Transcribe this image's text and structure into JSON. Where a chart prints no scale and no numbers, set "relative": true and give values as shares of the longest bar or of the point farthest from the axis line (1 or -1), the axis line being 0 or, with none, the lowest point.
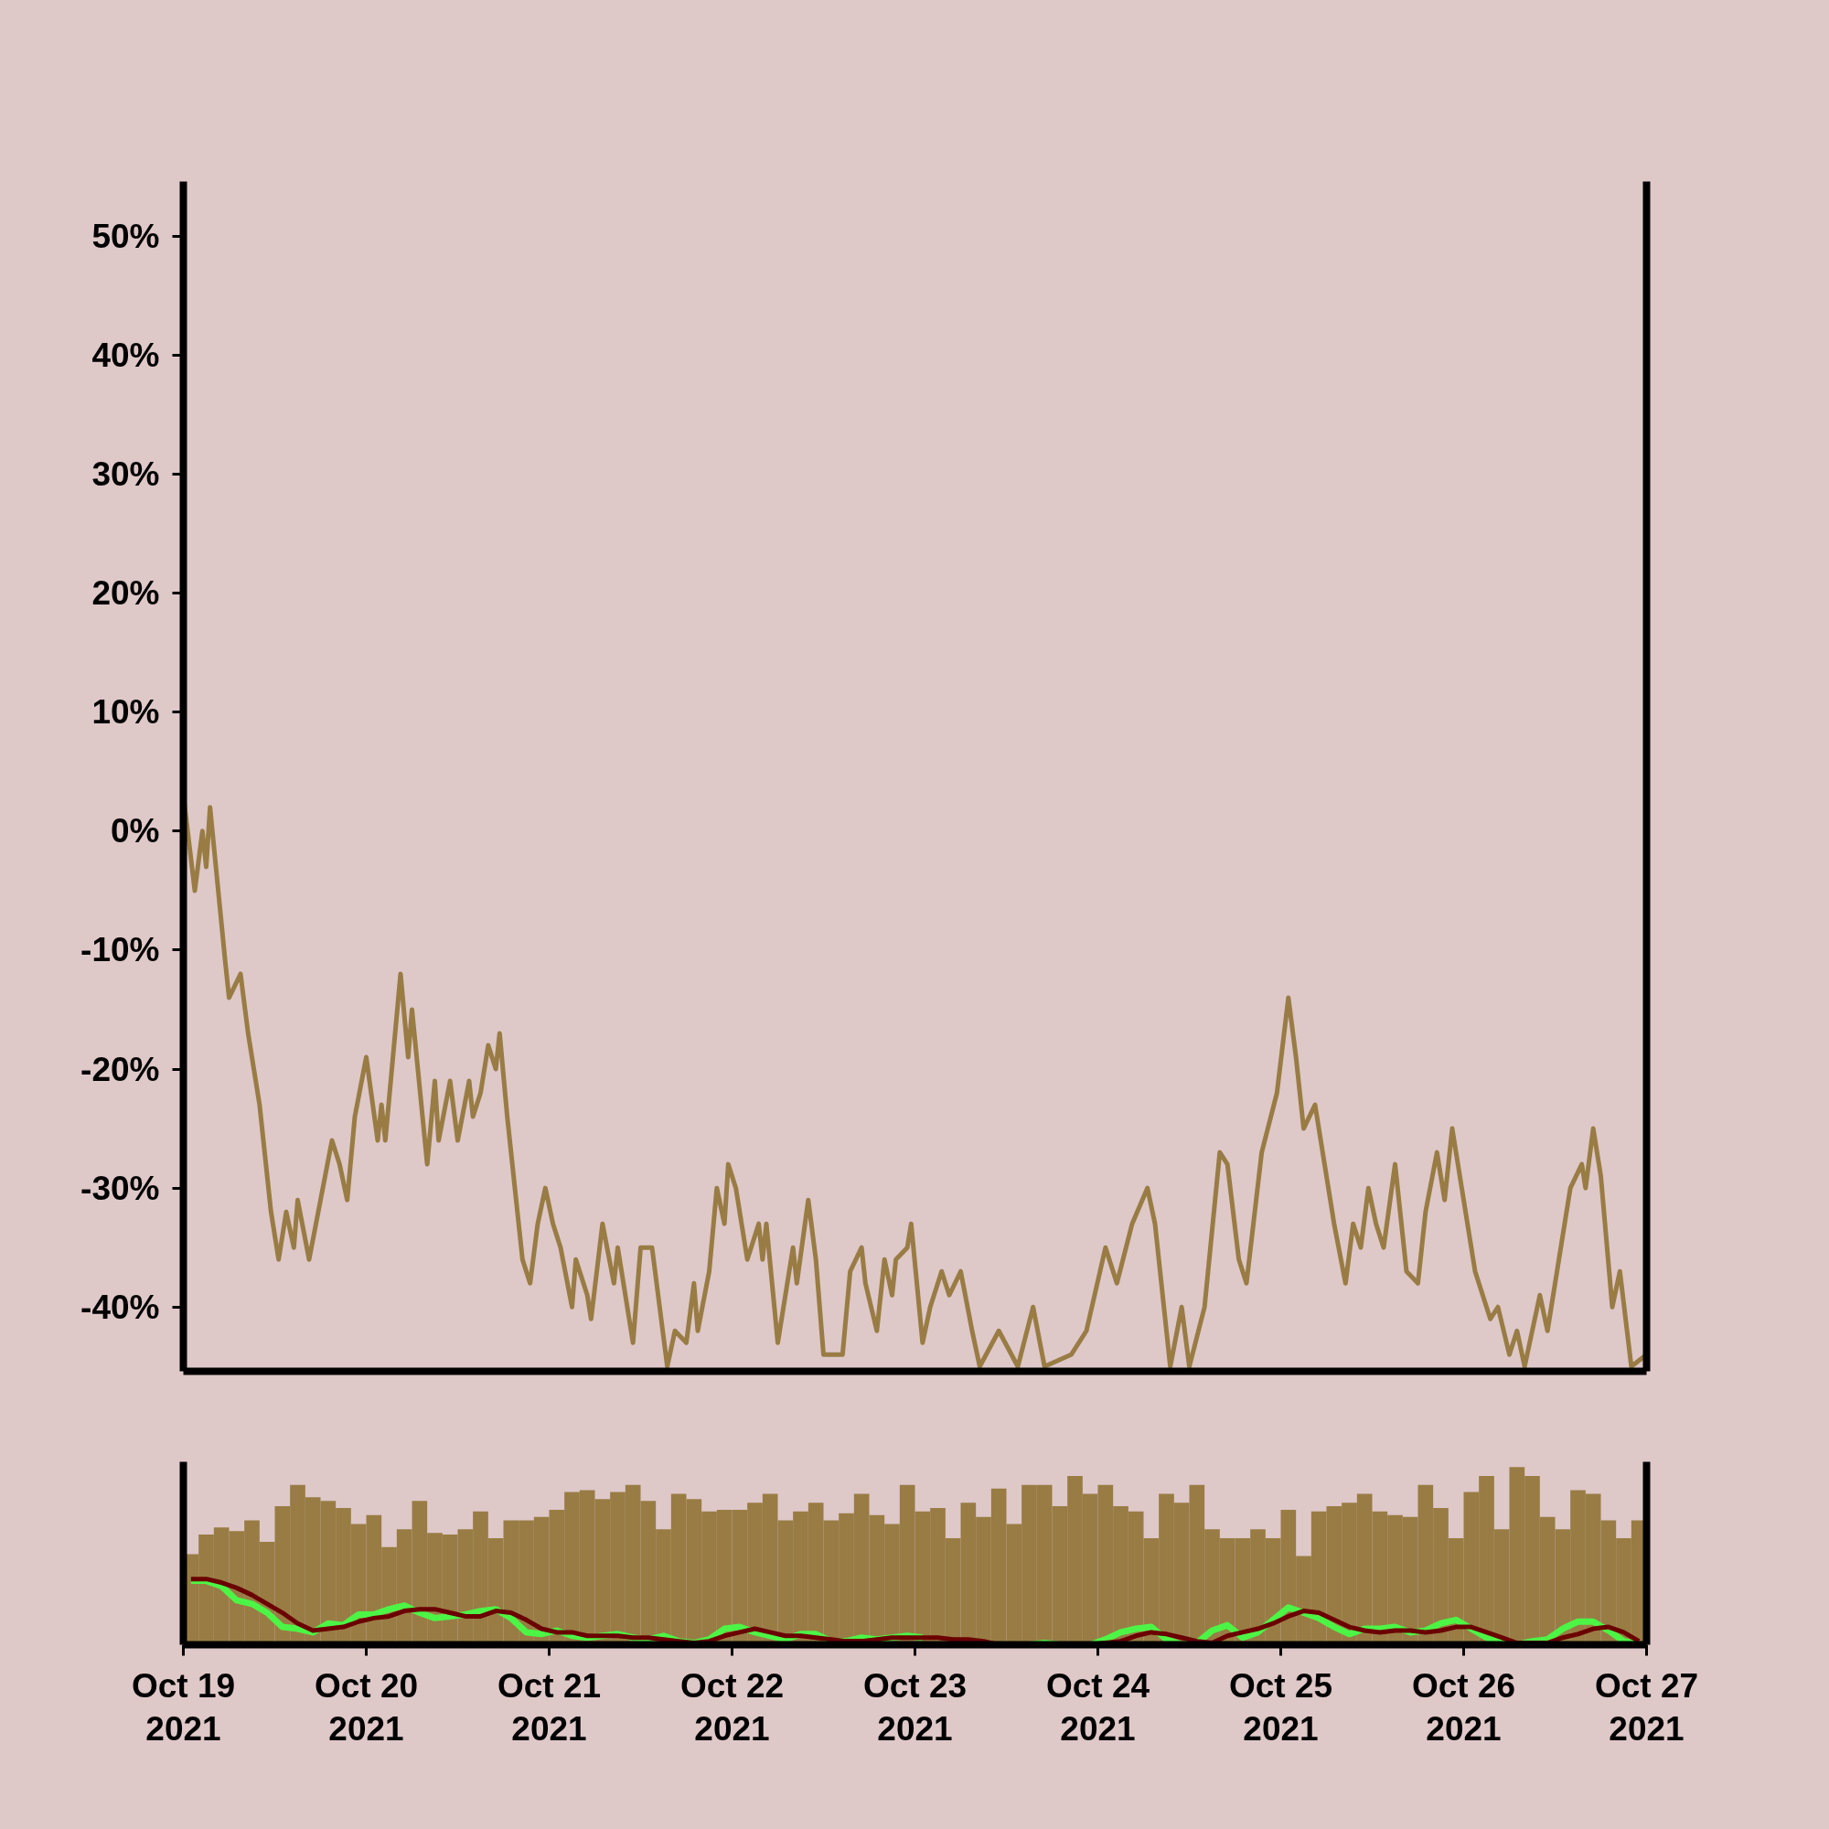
{
  "chart_data": [
    {
      "type": "line",
      "tick_labels": "y",
      "xlim": [
        "2021-10-19",
        "2021-10-27"
      ],
      "ylim": [
        -45.4,
        54.6
      ],
      "yticks": [
        {
          "value": -40,
          "label": "-40%"
        },
        {
          "value": -30,
          "label": "-30%"
        },
        {
          "value": -20,
          "label": "-20%"
        },
        {
          "value": -10,
          "label": "-10%"
        },
        {
          "value": 0,
          "label": "0%"
        },
        {
          "value": 10,
          "label": "10%"
        },
        {
          "value": 20,
          "label": "20%"
        },
        {
          "value": 30,
          "label": "30%"
        },
        {
          "value": 40,
          "label": "40%"
        },
        {
          "value": 50,
          "label": "50%"
        }
      ],
      "x": [
        "2021-10-19T00:00",
        "2021-10-19T01:30",
        "2021-10-19T02:30",
        "2021-10-19T03:00",
        "2021-10-19T03:30",
        "2021-10-19T05:30",
        "2021-10-19T06:00",
        "2021-10-19T07:30",
        "2021-10-19T08:30",
        "2021-10-19T10:00",
        "2021-10-19T11:30",
        "2021-10-19T12:30",
        "2021-10-19T13:30",
        "2021-10-19T14:30",
        "2021-10-19T15:00",
        "2021-10-19T16:30",
        "2021-10-19T18:00",
        "2021-10-19T19:30",
        "2021-10-19T20:30",
        "2021-10-19T21:30",
        "2021-10-19T22:30",
        "2021-10-20T00:00",
        "2021-10-20T01:30",
        "2021-10-20T02:00",
        "2021-10-20T02:30",
        "2021-10-20T04:30",
        "2021-10-20T05:30",
        "2021-10-20T06:00",
        "2021-10-20T08:00",
        "2021-10-20T09:00",
        "2021-10-20T09:30",
        "2021-10-20T11:00",
        "2021-10-20T12:00",
        "2021-10-20T13:30",
        "2021-10-20T14:00",
        "2021-10-20T15:00",
        "2021-10-20T16:00",
        "2021-10-20T17:00",
        "2021-10-20T17:30",
        "2021-10-20T18:30",
        "2021-10-20T20:30",
        "2021-10-20T21:30",
        "2021-10-20T22:30",
        "2021-10-20T23:30",
        "2021-10-21T00:30",
        "2021-10-21T01:30",
        "2021-10-21T03:00",
        "2021-10-21T03:30",
        "2021-10-21T05:00",
        "2021-10-21T05:30",
        "2021-10-21T07:00",
        "2021-10-21T08:30",
        "2021-10-21T09:00",
        "2021-10-21T11:00",
        "2021-10-21T12:00",
        "2021-10-21T13:30",
        "2021-10-21T14:30",
        "2021-10-21T15:30",
        "2021-10-21T16:30",
        "2021-10-21T18:00",
        "2021-10-21T19:00",
        "2021-10-21T19:30",
        "2021-10-21T21:00",
        "2021-10-21T22:00",
        "2021-10-21T23:00",
        "2021-10-21T23:30",
        "2021-10-22T00:30",
        "2021-10-22T02:00",
        "2021-10-22T03:30",
        "2021-10-22T04:00",
        "2021-10-22T04:30",
        "2021-10-22T06:00",
        "2021-10-22T08:00",
        "2021-10-22T08:30",
        "2021-10-22T10:00",
        "2021-10-22T11:00",
        "2021-10-22T12:00",
        "2021-10-22T13:30",
        "2021-10-22T14:30",
        "2021-10-22T15:30",
        "2021-10-22T17:00",
        "2021-10-22T17:30",
        "2021-10-22T19:00",
        "2021-10-22T20:00",
        "2021-10-22T21:00",
        "2021-10-22T21:30",
        "2021-10-22T23:00",
        "2021-10-22T23:30",
        "2021-10-23T01:00",
        "2021-10-23T02:00",
        "2021-10-23T03:30",
        "2021-10-23T04:30",
        "2021-10-23T06:00",
        "2021-10-23T07:30",
        "2021-10-23T08:30",
        "2021-10-23T11:00",
        "2021-10-23T13:30",
        "2021-10-23T15:30",
        "2021-10-23T17:00",
        "2021-10-23T20:30",
        "2021-10-23T22:30",
        "2021-10-24T01:00",
        "2021-10-24T02:30",
        "2021-10-24T04:30",
        "2021-10-24T06:30",
        "2021-10-24T07:30",
        "2021-10-24T09:30",
        "2021-10-24T11:00",
        "2021-10-24T12:00",
        "2021-10-24T14:00",
        "2021-10-24T16:00",
        "2021-10-24T17:00",
        "2021-10-24T18:30",
        "2021-10-24T19:30",
        "2021-10-24T21:30",
        "2021-10-24T23:30",
        "2021-10-25T01:00",
        "2021-10-25T02:00",
        "2021-10-25T03:00",
        "2021-10-25T04:30",
        "2021-10-25T05:30",
        "2021-10-25T07:00",
        "2021-10-25T08:30",
        "2021-10-25T09:30",
        "2021-10-25T10:30",
        "2021-10-25T11:30",
        "2021-10-25T12:30",
        "2021-10-25T13:30",
        "2021-10-25T15:00",
        "2021-10-25T16:30",
        "2021-10-25T18:00",
        "2021-10-25T19:00",
        "2021-10-25T20:30",
        "2021-10-25T21:30",
        "2021-10-25T22:30",
        "2021-10-26T00:30",
        "2021-10-26T01:30",
        "2021-10-26T02:30",
        "2021-10-26T03:30",
        "2021-10-26T04:30",
        "2021-10-26T06:00",
        "2021-10-26T07:00",
        "2021-10-26T08:00",
        "2021-10-26T10:00",
        "2021-10-26T11:00",
        "2021-10-26T11:30",
        "2021-10-26T14:00",
        "2021-10-26T15:30",
        "2021-10-26T16:00",
        "2021-10-26T17:00",
        "2021-10-26T18:00",
        "2021-10-26T19:30",
        "2021-10-26T20:30",
        "2021-10-26T22:00",
        "2021-10-27T00:00"
      ],
      "series": [
        {
          "color": "#987c44",
          "values": [
            3,
            -5,
            0,
            -3,
            2,
            -11,
            -14,
            -12,
            -17,
            -23,
            -32,
            -36,
            -32,
            -35,
            -31,
            -36,
            -31,
            -26,
            -28,
            -31,
            -24,
            -19,
            -26,
            -23,
            -26,
            -12,
            -19,
            -15,
            -28,
            -21,
            -26,
            -21,
            -26,
            -21,
            -24,
            -22,
            -18,
            -20,
            -17,
            -24,
            -36,
            -38,
            -33,
            -30,
            -33,
            -35,
            -40,
            -36,
            -39,
            -41,
            -33,
            -38,
            -35,
            -43,
            -35,
            -35,
            -40,
            -45,
            -42,
            -43,
            -38,
            -42,
            -37,
            -30,
            -33,
            -28,
            -30,
            -36,
            -33,
            -36,
            -33,
            -43,
            -35,
            -38,
            -31,
            -36,
            -44,
            -44,
            -44,
            -37,
            -35,
            -38,
            -42,
            -36,
            -39,
            -36,
            -35,
            -33,
            -43,
            -40,
            -37,
            -39,
            -37,
            -42,
            -45,
            -42,
            -45,
            -40,
            -45,
            -44,
            -42,
            -35,
            -38,
            -33,
            -30,
            -33,
            -45,
            -40,
            -45,
            -40,
            -27,
            -28,
            -36,
            -38,
            -27,
            -22,
            -14,
            -19,
            -25,
            -23,
            -27,
            -33,
            -38,
            -33,
            -35,
            -30,
            -33,
            -35,
            -28,
            -37,
            -38,
            -32,
            -27,
            -31,
            -25,
            -33,
            -37,
            -39,
            -41,
            -40,
            -44,
            -42,
            -45,
            -39,
            -42,
            -40,
            -30,
            -28,
            -30,
            -25,
            -29,
            -40,
            -37,
            -45,
            -44
          ]
        }
      ]
    },
    {
      "type": "bar",
      "relative": true,
      "tick_labels": "x",
      "xlim": [
        "2021-10-19",
        "2021-10-27"
      ],
      "xticks": [
        {
          "value": "2021-10-19",
          "label": "Oct 19\n2021"
        },
        {
          "value": "2021-10-20",
          "label": "Oct 20\n2021"
        },
        {
          "value": "2021-10-21",
          "label": "Oct 21\n2021"
        },
        {
          "value": "2021-10-22",
          "label": "Oct 22\n2021"
        },
        {
          "value": "2021-10-23",
          "label": "Oct 23\n2021"
        },
        {
          "value": "2021-10-24",
          "label": "Oct 24\n2021"
        },
        {
          "value": "2021-10-25",
          "label": "Oct 25\n2021"
        },
        {
          "value": "2021-10-26",
          "label": "Oct 26\n2021"
        },
        {
          "value": "2021-10-27",
          "label": "Oct 27\n2021"
        }
      ],
      "x": [
        "2021-10-19T01:00",
        "2021-10-19T03:00",
        "2021-10-19T05:00",
        "2021-10-19T07:00",
        "2021-10-19T09:00",
        "2021-10-19T11:00",
        "2021-10-19T13:00",
        "2021-10-19T15:00",
        "2021-10-19T17:00",
        "2021-10-19T19:00",
        "2021-10-19T21:00",
        "2021-10-19T23:00",
        "2021-10-20T01:00",
        "2021-10-20T03:00",
        "2021-10-20T05:00",
        "2021-10-20T07:00",
        "2021-10-20T09:00",
        "2021-10-20T11:00",
        "2021-10-20T13:00",
        "2021-10-20T15:00",
        "2021-10-20T17:00",
        "2021-10-20T19:00",
        "2021-10-20T21:00",
        "2021-10-20T23:00",
        "2021-10-21T01:00",
        "2021-10-21T03:00",
        "2021-10-21T05:00",
        "2021-10-21T07:00",
        "2021-10-21T09:00",
        "2021-10-21T11:00",
        "2021-10-21T13:00",
        "2021-10-21T15:00",
        "2021-10-21T17:00",
        "2021-10-21T19:00",
        "2021-10-21T21:00",
        "2021-10-21T23:00",
        "2021-10-22T01:00",
        "2021-10-22T03:00",
        "2021-10-22T05:00",
        "2021-10-22T07:00",
        "2021-10-22T09:00",
        "2021-10-22T11:00",
        "2021-10-22T13:00",
        "2021-10-22T15:00",
        "2021-10-22T17:00",
        "2021-10-22T19:00",
        "2021-10-22T21:00",
        "2021-10-22T23:00",
        "2021-10-23T01:00",
        "2021-10-23T03:00",
        "2021-10-23T05:00",
        "2021-10-23T07:00",
        "2021-10-23T09:00",
        "2021-10-23T11:00",
        "2021-10-23T13:00",
        "2021-10-23T15:00",
        "2021-10-23T17:00",
        "2021-10-23T19:00",
        "2021-10-23T21:00",
        "2021-10-23T23:00",
        "2021-10-24T01:00",
        "2021-10-24T03:00",
        "2021-10-24T05:00",
        "2021-10-24T07:00",
        "2021-10-24T09:00",
        "2021-10-24T11:00",
        "2021-10-24T13:00",
        "2021-10-24T15:00",
        "2021-10-24T17:00",
        "2021-10-24T19:00",
        "2021-10-24T21:00",
        "2021-10-24T23:00",
        "2021-10-25T01:00",
        "2021-10-25T03:00",
        "2021-10-25T05:00",
        "2021-10-25T07:00",
        "2021-10-25T09:00",
        "2021-10-25T11:00",
        "2021-10-25T13:00",
        "2021-10-25T15:00",
        "2021-10-25T17:00",
        "2021-10-25T19:00",
        "2021-10-25T21:00",
        "2021-10-25T23:00",
        "2021-10-26T01:00",
        "2021-10-26T03:00",
        "2021-10-26T05:00",
        "2021-10-26T07:00",
        "2021-10-26T09:00",
        "2021-10-26T11:00",
        "2021-10-26T13:00",
        "2021-10-26T15:00",
        "2021-10-26T17:00",
        "2021-10-26T19:00",
        "2021-10-26T21:00",
        "2021-10-26T23:00"
      ],
      "series": [
        {
          "type": "bar",
          "color": "#987c44",
          "values": [
            0.51,
            0.62,
            0.66,
            0.64,
            0.7,
            0.58,
            0.78,
            0.9,
            0.83,
            0.81,
            0.77,
            0.68,
            0.73,
            0.55,
            0.65,
            0.81,
            0.63,
            0.62,
            0.65,
            0.75,
            0.6,
            0.7,
            0.7,
            0.72,
            0.76,
            0.86,
            0.87,
            0.82,
            0.86,
            0.9,
            0.81,
            0.65,
            0.85,
            0.82,
            0.75,
            0.76,
            0.76,
            0.8,
            0.85,
            0.7,
            0.75,
            0.8,
            0.7,
            0.74,
            0.85,
            0.73,
            0.68,
            0.9,
            0.75,
            0.77,
            0.6,
            0.8,
            0.72,
            0.88,
            0.68,
            0.9,
            0.9,
            0.78,
            0.95,
            0.85,
            0.9,
            0.78,
            0.75,
            0.6,
            0.85,
            0.8,
            0.9,
            0.65,
            0.6,
            0.6,
            0.65,
            0.6,
            0.76,
            0.5,
            0.75,
            0.78,
            0.8,
            0.85,
            0.75,
            0.73,
            0.72,
            0.9,
            0.77,
            0.6,
            0.86,
            0.95,
            0.65,
            1.0,
            0.95,
            0.72,
            0.65,
            0.87,
            0.85,
            0.7,
            0.6,
            0.7
          ]
        },
        {
          "type": "line",
          "color": "#4cf545",
          "values": [
            0.36,
            0.36,
            0.33,
            0.25,
            0.23,
            0.18,
            0.1,
            0.09,
            0.07,
            0.12,
            0.11,
            0.17,
            0.17,
            0.2,
            0.22,
            0.18,
            0.15,
            0.16,
            0.17,
            0.19,
            0.2,
            0.15,
            0.07,
            0.06,
            0.08,
            0.05,
            0.04,
            0.05,
            0.06,
            0.04,
            0.03,
            0.05,
            0.02,
            0.01,
            0.03,
            0.09,
            0.1,
            0.07,
            0.05,
            0.03,
            0.06,
            0.06,
            0.02,
            0.02,
            0.04,
            0.03,
            0.04,
            0.05,
            0.04,
            null,
            null,
            0.0,
            0.0,
            0.0,
            0.0,
            0.0,
            0.01,
            0.0,
            0.0,
            0.0,
            0.03,
            0.07,
            0.09,
            0.1,
            0.03,
            0.0,
            0.01,
            0.08,
            0.11,
            0.04,
            0.07,
            0.14,
            0.21,
            0.18,
            0.15,
            0.1,
            0.06,
            0.09,
            0.09,
            0.1,
            0.07,
            0.08,
            0.12,
            0.14,
            0.09,
            0.04,
            0.01,
            0.0,
            0.02,
            0.03,
            0.09,
            0.13,
            0.13,
            0.08,
            0.02,
            0.0
          ]
        },
        {
          "type": "line",
          "color": "#6b0000",
          "values": [
            0.37,
            0.37,
            0.35,
            0.32,
            0.28,
            0.23,
            0.18,
            0.12,
            0.08,
            0.09,
            0.1,
            0.13,
            0.15,
            0.16,
            0.19,
            0.2,
            0.2,
            0.18,
            0.16,
            0.16,
            0.19,
            0.18,
            0.14,
            0.09,
            0.07,
            0.07,
            0.05,
            0.05,
            0.05,
            0.04,
            0.04,
            0.03,
            0.02,
            0.01,
            0.02,
            0.05,
            0.07,
            0.09,
            0.07,
            0.05,
            0.05,
            0.04,
            0.03,
            0.02,
            0.02,
            0.03,
            0.04,
            0.04,
            0.04,
            0.04,
            0.03,
            0.03,
            0.02,
            0.0,
            0.0,
            0.0,
            0.0,
            0.0,
            0.0,
            0.0,
            0.01,
            0.02,
            0.05,
            0.07,
            0.06,
            0.04,
            0.02,
            0.01,
            0.05,
            0.07,
            0.09,
            0.12,
            0.16,
            0.19,
            0.18,
            0.14,
            0.1,
            0.08,
            0.07,
            0.08,
            0.08,
            0.07,
            0.08,
            0.1,
            0.1,
            0.07,
            0.04,
            0.01,
            0.01,
            0.01,
            0.04,
            0.06,
            0.09,
            0.1,
            0.07,
            0.02
          ]
        }
      ]
    }
  ]
}
